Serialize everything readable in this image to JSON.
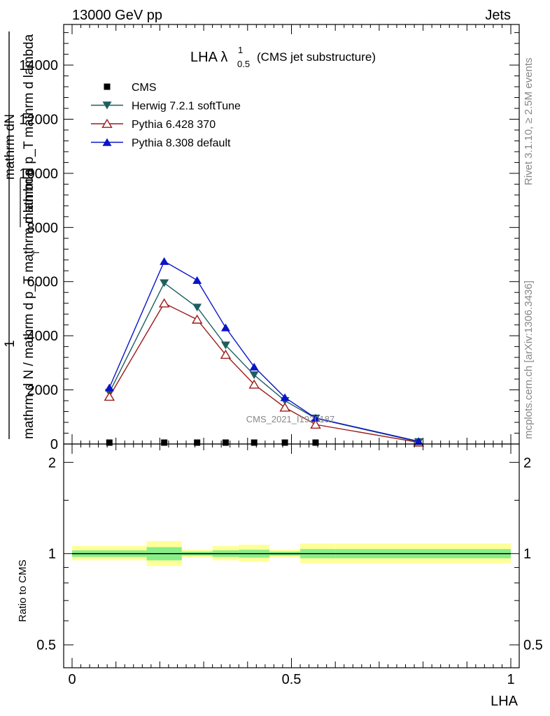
{
  "header": {
    "left": "13000 GeV pp",
    "right": "Jets"
  },
  "title": {
    "main": "LHA λ",
    "sup": "1",
    "sub": "0.5",
    "suffix": "(CMS jet substructure)"
  },
  "side_text": {
    "rivet": "Rivet 3.1.10, ≥ 2.5M events",
    "mcplots": "mcplots.cern.ch [arXiv:1306.3436]"
  },
  "watermark": "CMS_2021_I1920187",
  "chart_data": [
    {
      "type": "line",
      "panel": "main",
      "ylabel_lines": [
        "mathrm dN",
        "mathrm d p_T mathrm d lambda",
        "1",
        "mathrm d N / mathrm d p_T mathrm d lambda"
      ],
      "ylabel_sub": "T",
      "ylim": [
        0,
        15500
      ],
      "xlim": [
        0,
        1
      ],
      "yticks": [
        0,
        2000,
        4000,
        6000,
        8000,
        10000,
        12000,
        14000
      ],
      "ytick_labels": [
        "0",
        "2000",
        "4000",
        "6000",
        "8000",
        "10000",
        "12000",
        "14000"
      ],
      "legend_position": "top-left",
      "series": [
        {
          "name": "CMS",
          "marker": "square",
          "color": "#000000",
          "x": [
            0.085,
            0.21,
            0.285,
            0.35,
            0.415,
            0.485,
            0.555
          ],
          "y": [
            0,
            0,
            0,
            0,
            0,
            0,
            0
          ]
        },
        {
          "name": "Herwig 7.2.1 softTune",
          "marker": "triangle-down",
          "color": "#1d5f5f",
          "x": [
            0.085,
            0.21,
            0.285,
            0.35,
            0.415,
            0.485,
            0.555,
            0.79
          ],
          "y": [
            1900,
            5950,
            5050,
            3650,
            2550,
            1600,
            950,
            80
          ]
        },
        {
          "name": "Pythia 6.428 370",
          "marker": "triangle-up-open",
          "color": "#9b1b1b",
          "x": [
            0.085,
            0.21,
            0.285,
            0.35,
            0.415,
            0.485,
            0.555,
            0.79
          ],
          "y": [
            1750,
            5200,
            4600,
            3300,
            2200,
            1350,
            720,
            60
          ]
        },
        {
          "name": "Pythia 8.308 default",
          "marker": "triangle-up",
          "color": "#0a14c8",
          "x": [
            0.085,
            0.21,
            0.285,
            0.35,
            0.415,
            0.485,
            0.555,
            0.79
          ],
          "y": [
            2080,
            6750,
            6050,
            4300,
            2850,
            1720,
            960,
            100
          ]
        }
      ]
    },
    {
      "type": "area",
      "panel": "ratio",
      "ylabel": "Ratio to CMS",
      "xlabel": "LHA",
      "xlim": [
        0,
        1
      ],
      "ylim": [
        0.42,
        2.3
      ],
      "log_y": true,
      "xticks": [
        0,
        0.5,
        1
      ],
      "xtick_labels": [
        "0",
        "0.5",
        "1"
      ],
      "yticks": [
        0.5,
        1,
        2
      ],
      "ytick_labels": [
        "0.5",
        "1",
        "2"
      ],
      "bins": [
        {
          "x0": 0.0,
          "x1": 0.17,
          "yellow": [
            0.95,
            1.06
          ],
          "green": [
            0.975,
            1.025
          ]
        },
        {
          "x0": 0.17,
          "x1": 0.25,
          "yellow": [
            0.91,
            1.1
          ],
          "green": [
            0.95,
            1.05
          ]
        },
        {
          "x0": 0.25,
          "x1": 0.32,
          "yellow": [
            0.97,
            1.03
          ],
          "green": [
            0.985,
            1.015
          ]
        },
        {
          "x0": 0.32,
          "x1": 0.38,
          "yellow": [
            0.95,
            1.06
          ],
          "green": [
            0.975,
            1.025
          ]
        },
        {
          "x0": 0.38,
          "x1": 0.45,
          "yellow": [
            0.94,
            1.07
          ],
          "green": [
            0.97,
            1.03
          ]
        },
        {
          "x0": 0.45,
          "x1": 0.52,
          "yellow": [
            0.97,
            1.03
          ],
          "green": [
            0.985,
            1.015
          ]
        },
        {
          "x0": 0.52,
          "x1": 0.6,
          "yellow": [
            0.93,
            1.08
          ],
          "green": [
            0.965,
            1.035
          ]
        },
        {
          "x0": 0.6,
          "x1": 1.0,
          "yellow": [
            0.93,
            1.08
          ],
          "green": [
            0.965,
            1.035
          ]
        }
      ],
      "reference_line": 1
    }
  ],
  "colors": {
    "yellow_band": "#ffff99",
    "green_band": "#88ee88",
    "axis": "#000000",
    "side_text": "#888888"
  }
}
